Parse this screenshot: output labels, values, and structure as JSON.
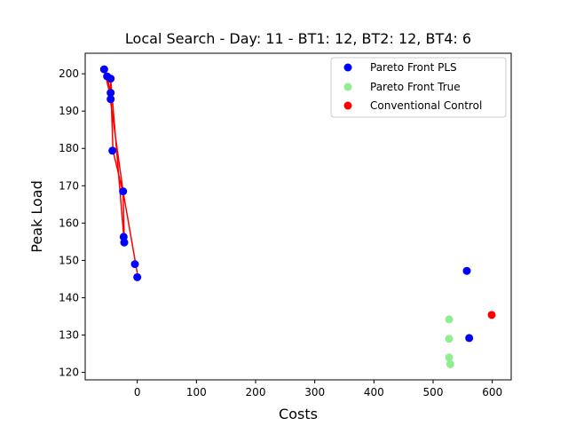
{
  "chart_data": {
    "type": "scatter",
    "title": "Local Search - Day: 11 - BT1: 12, BT2: 12, BT4: 6",
    "xlabel": "Costs",
    "ylabel": "Peak Load",
    "xlim": [
      -88,
      632
    ],
    "ylim": [
      118,
      205.5
    ],
    "xticks": [
      0,
      100,
      200,
      300,
      400,
      500,
      600
    ],
    "yticks": [
      120,
      130,
      140,
      150,
      160,
      170,
      180,
      190,
      200
    ],
    "grid": false,
    "legend_position": "top-right",
    "series": [
      {
        "name": "Pareto Front PLS",
        "color": "#0000ff",
        "points": [
          {
            "x": -56,
            "y": 201.2
          },
          {
            "x": -51,
            "y": 199.3
          },
          {
            "x": -45,
            "y": 198.7
          },
          {
            "x": -45,
            "y": 194.9
          },
          {
            "x": -45,
            "y": 193.2
          },
          {
            "x": -42,
            "y": 179.4
          },
          {
            "x": -24,
            "y": 168.5
          },
          {
            "x": -23,
            "y": 156.3
          },
          {
            "x": -22,
            "y": 154.8
          },
          {
            "x": -4,
            "y": 149.0
          },
          {
            "x": 0,
            "y": 145.5
          },
          {
            "x": 557,
            "y": 147.2
          },
          {
            "x": 561,
            "y": 129.2
          }
        ]
      },
      {
        "name": "Pareto Front True",
        "color": "#90ee90",
        "points": [
          {
            "x": 527,
            "y": 134.2
          },
          {
            "x": 527,
            "y": 129.0
          },
          {
            "x": 527,
            "y": 124.0
          },
          {
            "x": 529,
            "y": 122.2
          }
        ]
      },
      {
        "name": "Conventional Control",
        "color": "#ff0000",
        "points": [
          {
            "x": 599,
            "y": 135.4
          }
        ]
      }
    ],
    "lines": [
      {
        "color": "#ff0000",
        "points": [
          {
            "x": -56,
            "y": 201.2
          },
          {
            "x": -44,
            "y": 193.0
          },
          {
            "x": -41,
            "y": 179.4
          },
          {
            "x": -24,
            "y": 168.0
          },
          {
            "x": -22,
            "y": 156.3
          },
          {
            "x": -22,
            "y": 154.8
          },
          {
            "x": -45,
            "y": 198.7
          },
          {
            "x": -45,
            "y": 194.9
          },
          {
            "x": -51,
            "y": 199.3
          },
          {
            "x": -24,
            "y": 168.5
          },
          {
            "x": 1,
            "y": 145.7
          }
        ]
      }
    ]
  }
}
